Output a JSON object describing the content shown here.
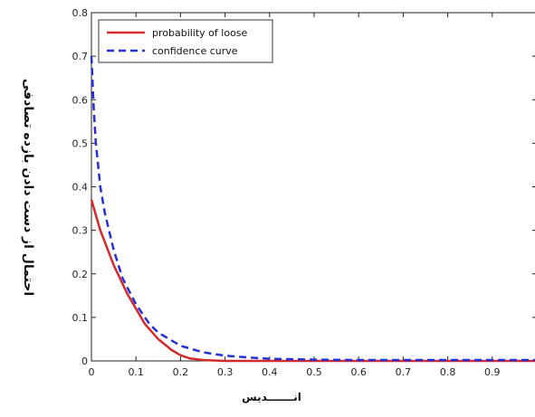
{
  "chart_data": {
    "type": "line",
    "title": "",
    "xlabel": "انـــــــديس",
    "ylabel": "احتمال از دست دادن بازده تصادفی",
    "xlim": [
      0,
      1
    ],
    "ylim": [
      0,
      0.8
    ],
    "x_ticks": [
      "0",
      "0.1",
      "0.2",
      "0.3",
      "0.4",
      "0.5",
      "0.6",
      "0.7",
      "0.8",
      "0.9"
    ],
    "y_ticks": [
      "0",
      "0.1",
      "0.2",
      "0.3",
      "0.4",
      "0.5",
      "0.6",
      "0.7",
      "0.8"
    ],
    "grid": false,
    "legend_position": "top-left",
    "series": [
      {
        "name": "probability of loose",
        "color": "#d42a2a",
        "style": "solid",
        "x": [
          0,
          0.02,
          0.05,
          0.08,
          0.1,
          0.12,
          0.15,
          0.18,
          0.2,
          0.22,
          0.25,
          0.3,
          0.4,
          0.5,
          0.7,
          1.0
        ],
        "y": [
          0.37,
          0.3,
          0.22,
          0.155,
          0.12,
          0.085,
          0.05,
          0.025,
          0.013,
          0.006,
          0.002,
          0.0,
          0.0,
          0.0,
          0.0,
          0.0
        ]
      },
      {
        "name": "confidence curve",
        "color": "#2430d8",
        "style": "dashed",
        "x": [
          0,
          0.005,
          0.01,
          0.02,
          0.03,
          0.05,
          0.07,
          0.1,
          0.13,
          0.15,
          0.2,
          0.25,
          0.3,
          0.35,
          0.4,
          0.5,
          0.6,
          0.8,
          1.0
        ],
        "y": [
          0.7,
          0.58,
          0.5,
          0.4,
          0.34,
          0.255,
          0.19,
          0.13,
          0.085,
          0.065,
          0.035,
          0.02,
          0.012,
          0.008,
          0.005,
          0.003,
          0.002,
          0.002,
          0.002
        ]
      }
    ]
  }
}
